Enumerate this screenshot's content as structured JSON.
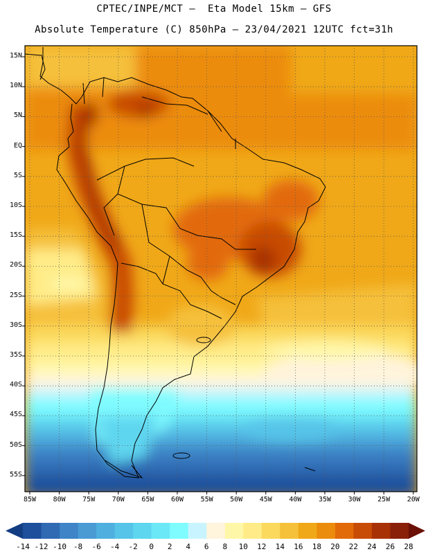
{
  "title_line1": "CPTEC/INPE/MCT –  Eta Model 15km – GFS",
  "title_line2": "Absolute Temperature (C) 850hPa – 23/04/2021 12UTC fct=31h",
  "lat_labels": [
    "15N",
    "10N",
    "5N",
    "EQ",
    "5S",
    "10S",
    "15S",
    "20S",
    "25S",
    "30S",
    "35S",
    "40S",
    "45S",
    "50S",
    "55S"
  ],
  "lon_labels": [
    "85W",
    "80W",
    "75W",
    "70W",
    "65W",
    "60W",
    "55W",
    "50W",
    "45W",
    "40W",
    "35W",
    "30W",
    "25W",
    "20W"
  ],
  "colorbar": {
    "labels": [
      "-14",
      "-12",
      "-10",
      "-8",
      "-6",
      "-4",
      "-2",
      "0",
      "2",
      "4",
      "6",
      "8",
      "10",
      "12",
      "14",
      "16",
      "18",
      "20",
      "22",
      "24",
      "26",
      "28"
    ],
    "colors": [
      "#1e4f9c",
      "#2f6ab3",
      "#3e84c6",
      "#4a9bd4",
      "#4fb0df",
      "#56c4e8",
      "#5ed6ef",
      "#6be8f7",
      "#7ffcff",
      "#c8f4ff",
      "#fff4dc",
      "#fff7a8",
      "#ffec88",
      "#fbd95c",
      "#f5c03a",
      "#f0a818",
      "#ec8c0c",
      "#e26a08",
      "#c84c06",
      "#a83206",
      "#8a2008"
    ],
    "left_arrow_color": "#123d82",
    "right_arrow_color": "#6a1006"
  }
}
